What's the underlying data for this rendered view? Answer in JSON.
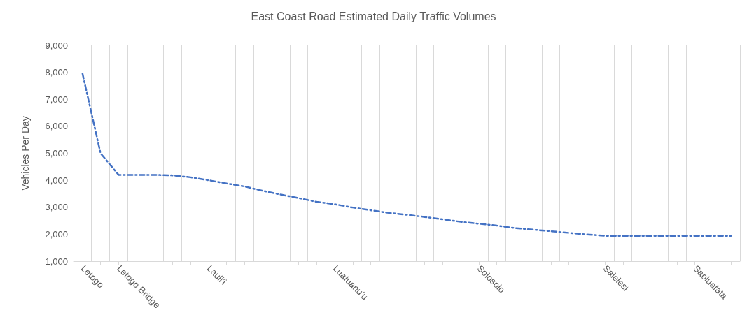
{
  "chart_data": {
    "type": "line",
    "title": "East Coast Road Estimated Daily Traffic Volumes",
    "ylabel": "Vehicles Per Day",
    "categories": [
      "Letogo",
      null,
      "Letogo Bridge",
      null,
      null,
      null,
      null,
      "Lauli'i",
      null,
      null,
      null,
      null,
      null,
      null,
      "Luatuanu'u",
      null,
      null,
      null,
      null,
      null,
      null,
      null,
      "Solosolo",
      null,
      null,
      null,
      null,
      null,
      null,
      "Salelesi",
      null,
      null,
      null,
      null,
      "Saoluafata",
      null,
      null
    ],
    "series": [
      {
        "color": "#4472c4",
        "values": [
          7950,
          5000,
          4200,
          4200,
          4200,
          4180,
          4110,
          4000,
          3880,
          3770,
          3610,
          3470,
          3340,
          3200,
          3110,
          2990,
          2890,
          2790,
          2720,
          2640,
          2550,
          2460,
          2390,
          2320,
          2230,
          2170,
          2110,
          2050,
          1990,
          1940,
          1940,
          1940,
          1940,
          1940,
          1940,
          1940,
          1940
        ]
      }
    ],
    "ylim": [
      1000,
      9000
    ],
    "yticks": [
      {
        "value": 1000,
        "label": "1,000"
      },
      {
        "value": 2000,
        "label": "2,000"
      },
      {
        "value": 3000,
        "label": "3,000"
      },
      {
        "value": 4000,
        "label": "4,000"
      },
      {
        "value": 5000,
        "label": "5,000"
      },
      {
        "value": 6000,
        "label": "6,000"
      },
      {
        "value": 7000,
        "label": "7,000"
      },
      {
        "value": 8000,
        "label": "8,000"
      },
      {
        "value": 9000,
        "label": "9,000"
      }
    ],
    "grid": "x",
    "marker": "none",
    "line_style": "dashed"
  }
}
